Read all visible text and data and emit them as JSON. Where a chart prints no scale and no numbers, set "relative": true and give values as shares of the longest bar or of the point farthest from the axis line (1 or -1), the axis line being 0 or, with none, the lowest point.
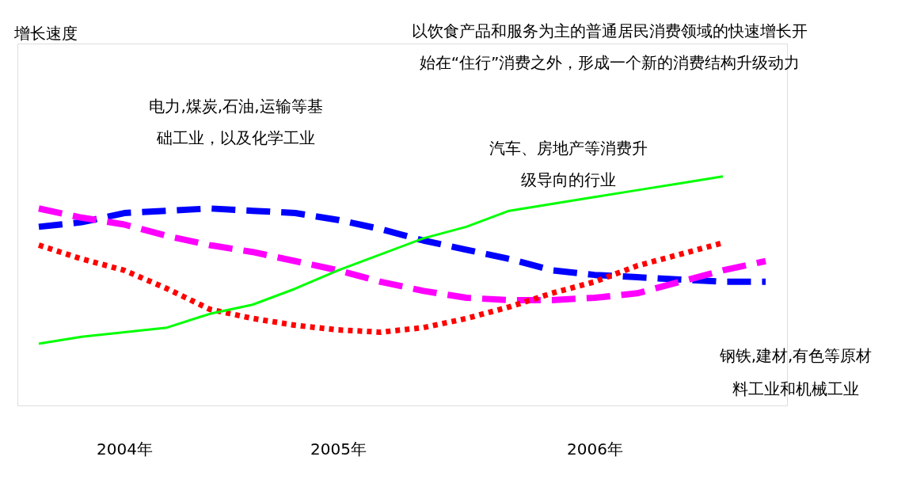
{
  "chart_data": {
    "type": "line",
    "relative": true,
    "grid": false,
    "categories": [
      null,
      null,
      "2004年",
      null,
      null,
      null,
      null,
      "2005年",
      null,
      null,
      null,
      null,
      null,
      "2006年",
      null,
      null,
      null,
      null
    ],
    "series": [
      {
        "color": "#0000ff",
        "line_style": "dashed",
        "values": [
          0.78,
          0.8,
          0.84,
          0.85,
          0.86,
          0.85,
          0.84,
          0.81,
          0.77,
          0.72,
          0.68,
          0.64,
          0.59,
          0.57,
          0.56,
          0.55,
          0.54,
          0.54
        ]
      },
      {
        "color": "#ff00ff",
        "line_style": "dashed",
        "values": [
          0.86,
          0.82,
          0.79,
          0.74,
          0.7,
          0.67,
          0.63,
          0.59,
          0.54,
          0.5,
          0.47,
          0.46,
          0.46,
          0.47,
          0.49,
          0.54,
          0.59,
          0.63
        ]
      },
      {
        "color": "#ff0000",
        "line_style": "dotted",
        "values": [
          0.7,
          0.64,
          0.59,
          0.51,
          0.42,
          0.38,
          0.35,
          0.33,
          0.32,
          0.34,
          0.38,
          0.43,
          0.49,
          0.54,
          0.61,
          0.66,
          0.71,
          null
        ]
      },
      {
        "color": "#00ff00",
        "line_style": "solid",
        "values": [
          0.27,
          0.3,
          0.32,
          0.34,
          0.4,
          0.44,
          0.51,
          0.59,
          0.66,
          0.73,
          0.78,
          0.85,
          0.88,
          0.91,
          0.94,
          0.97,
          1.0,
          null
        ]
      }
    ],
    "annotations": [
      "增长速度",
      "以饮食产品和服务为主的普通居民消费领域的快速增长开始在“住行”消费之外，形成一个新的消费结构升级动力",
      "电力,煤炭,石油,运输等基础工业，以及化学工业",
      "汽车、房地产等消费升级导向的行业",
      "钢铁,建材,有色等原材料工业和机械工业"
    ]
  }
}
